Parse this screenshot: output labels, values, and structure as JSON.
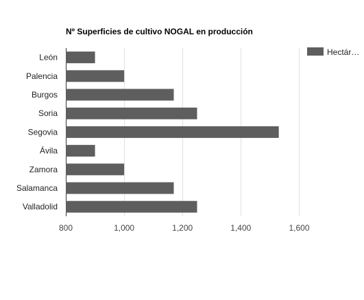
{
  "chart_data": {
    "type": "bar",
    "orientation": "horizontal",
    "title": "Nº Superficies de cultivo NOGAL en producción",
    "categories": [
      "León",
      "Palencia",
      "Burgos",
      "Soria",
      "Segovia",
      "Ávila",
      "Zamora",
      "Salamanca",
      "Valladolid"
    ],
    "series": [
      {
        "name": "Hectár…",
        "values": [
          900,
          1000,
          1170,
          1250,
          1530,
          900,
          1000,
          1170,
          1250
        ],
        "color": "#5e5e5e"
      }
    ],
    "xlim": [
      800,
      1660
    ],
    "xticks": [
      800,
      1000,
      1200,
      1400,
      1600
    ],
    "xtick_labels": [
      "800",
      "1,000",
      "1,200",
      "1,400",
      "1,600"
    ],
    "xlabel": "",
    "ylabel": "",
    "grid": true,
    "legend_position": "right"
  }
}
